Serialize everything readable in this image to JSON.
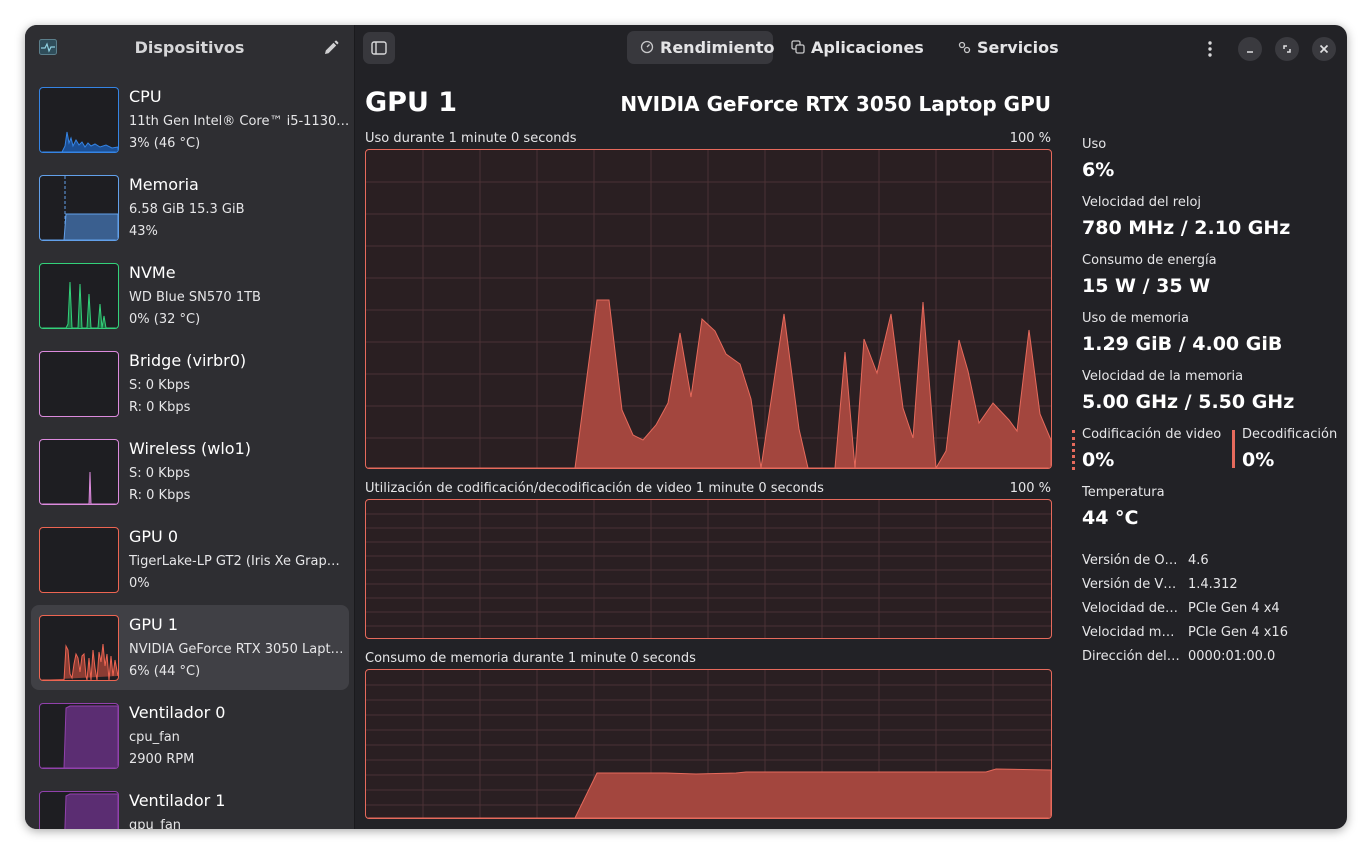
{
  "sidebar": {
    "title": "Dispositivos",
    "devices": [
      {
        "name": "CPU",
        "line1": "11th Gen Intel® Core™ i5-1130…",
        "line2": "3% (46 °C)",
        "color": "#3584e4"
      },
      {
        "name": "Memoria",
        "line1": "6.58 GiB 15.3 GiB",
        "line2": "43%",
        "color": "#62a0ea"
      },
      {
        "name": "NVMe",
        "line1": "WD Blue SN570 1TB",
        "line2": "0% (32 °C)",
        "color": "#33d17a"
      },
      {
        "name": "Bridge (virbr0)",
        "line1": "S: 0 Kbps",
        "line2": "R: 0 Kbps",
        "color": "#dc8add"
      },
      {
        "name": "Wireless (wlo1)",
        "line1": "S: 0 Kbps",
        "line2": "R: 0 Kbps",
        "color": "#dc8add"
      },
      {
        "name": "GPU 0",
        "line1": "TigerLake-LP GT2 (Iris Xe Grap…",
        "line2": "0%",
        "color": "#ed6552"
      },
      {
        "name": "GPU 1",
        "line1": "NVIDIA GeForce RTX 3050 Lapt…",
        "line2": "6% (44 °C)",
        "color": "#ed6552"
      },
      {
        "name": "Ventilador 0",
        "line1": "cpu_fan",
        "line2": "2900 RPM",
        "color": "#9141ac"
      },
      {
        "name": "Ventilador 1",
        "line1": "gpu_fan",
        "line2": "",
        "color": "#9141ac"
      }
    ]
  },
  "tabs": [
    {
      "label": "Rendimiento",
      "icon": "gauge-icon"
    },
    {
      "label": "Aplicaciones",
      "icon": "apps-icon"
    },
    {
      "label": "Servicios",
      "icon": "gears-icon"
    }
  ],
  "main": {
    "title": "GPU 1",
    "model": "NVIDIA GeForce RTX 3050 Laptop GPU",
    "graphs": [
      {
        "label": "Uso durante 1 minute 0 seconds",
        "max": "100 %"
      },
      {
        "label": "Utilización de codificación/decodificación de video 1 minute 0 seconds",
        "max": "100 %"
      },
      {
        "label": "Consumo de memoria durante 1 minute 0 seconds",
        "max": ""
      }
    ]
  },
  "stats": {
    "usage": {
      "label": "Uso",
      "value": "6%"
    },
    "clock": {
      "label": "Velocidad del reloj",
      "value": "780 MHz / 2.10 GHz"
    },
    "power": {
      "label": "Consumo de energía",
      "value": "15 W / 35 W"
    },
    "memory": {
      "label": "Uso de memoria",
      "value": "1.29 GiB / 4.00 GiB"
    },
    "memspeed": {
      "label": "Velocidad de la memoria",
      "value": "5.00 GHz / 5.50 GHz"
    },
    "encode": {
      "label": "Codificación de video",
      "value": "0%"
    },
    "decode": {
      "label": "Decodificación d",
      "value": "0%"
    },
    "temp": {
      "label": "Temperatura",
      "value": "44 °C"
    },
    "details": [
      {
        "key": "Versión de O…",
        "value": "4.6"
      },
      {
        "key": "Versión de V…",
        "value": "1.4.312"
      },
      {
        "key": "Velocidad de…",
        "value": "PCIe Gen 4 x4"
      },
      {
        "key": "Velocidad m…",
        "value": "PCIe Gen 4 x16"
      },
      {
        "key": "Dirección del…",
        "value": "0000:01:00.0"
      }
    ]
  },
  "colors": {
    "accent": "#e66a5c",
    "window_bg": "#222226",
    "sidebar_bg": "#2e2e32",
    "selected": "#404045"
  }
}
